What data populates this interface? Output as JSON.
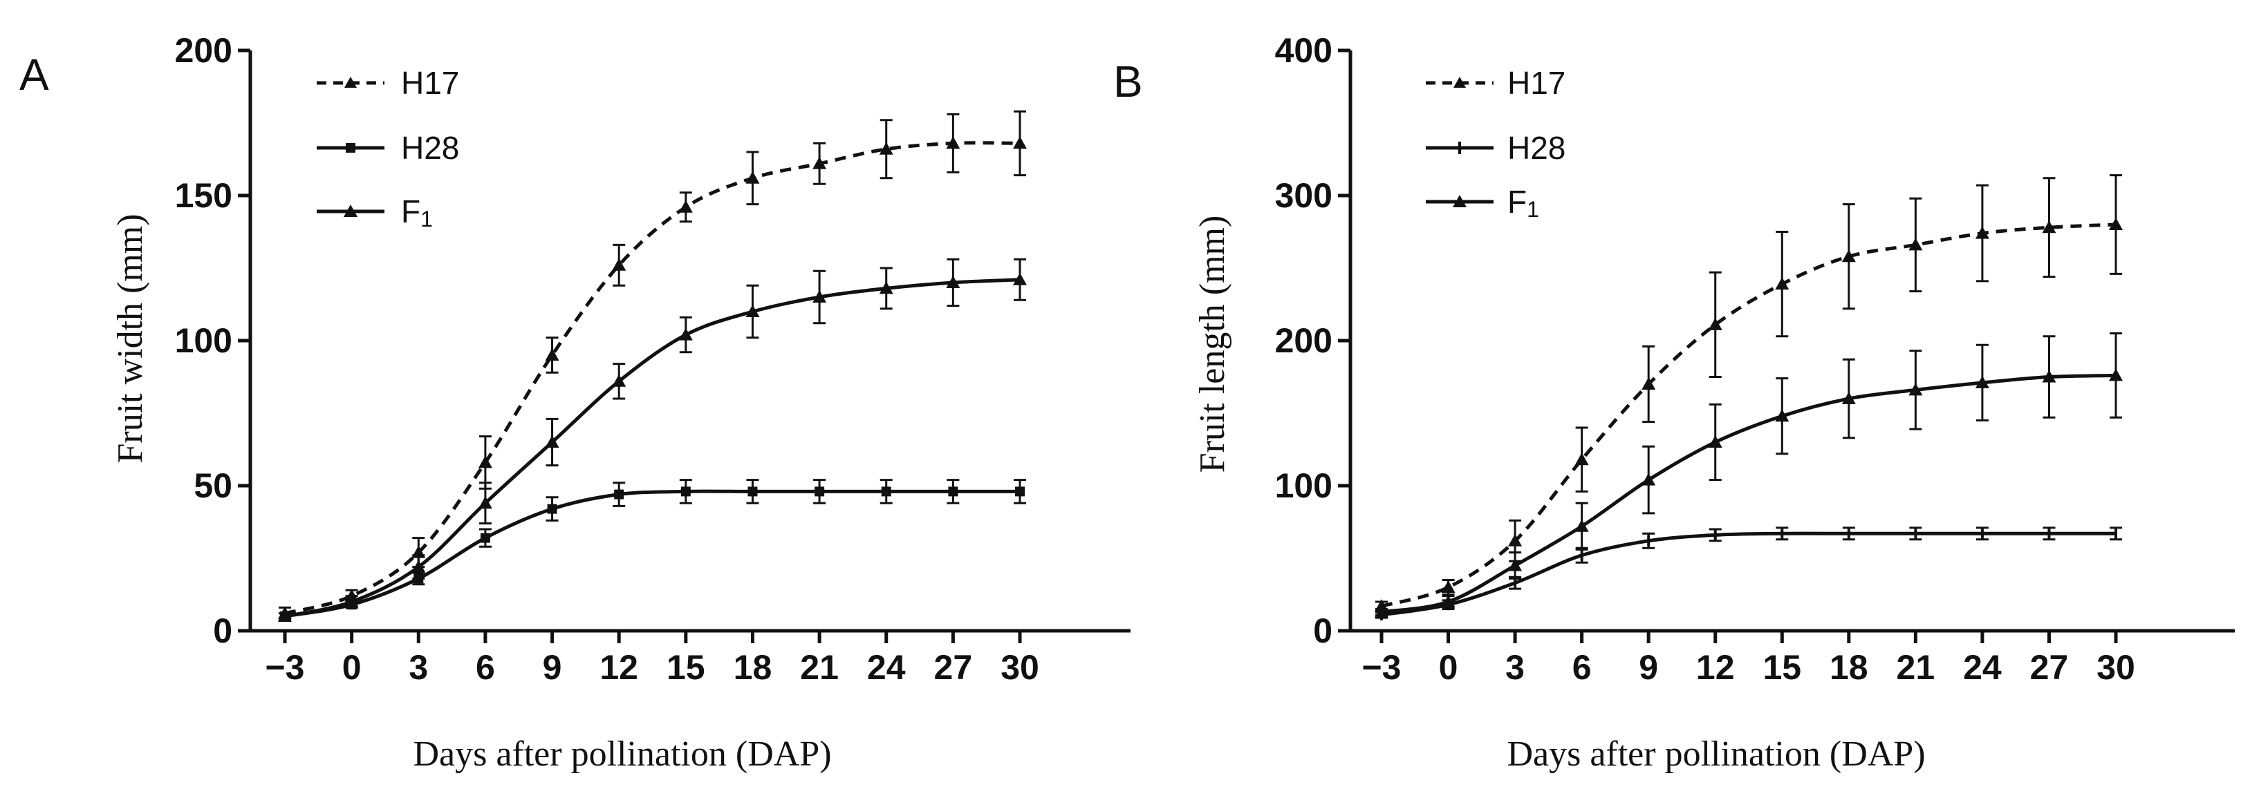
{
  "chart_data": [
    {
      "panel": "A",
      "type": "line",
      "xlabel": "Days after pollination (DAP)",
      "ylabel": "Fruit width (mm)",
      "ylim": [
        0,
        200
      ],
      "yticks": [
        0,
        50,
        100,
        150,
        200
      ],
      "xticks": [
        -3,
        0,
        3,
        6,
        9,
        12,
        15,
        18,
        21,
        24,
        27,
        30
      ],
      "xtick_labels": [
        "−3",
        "0",
        "3",
        "6",
        "9",
        "12",
        "15",
        "18",
        "21",
        "24",
        "27",
        "30"
      ],
      "legend_placement": "top-left",
      "x": [
        -3,
        0,
        3,
        6,
        9,
        12,
        15,
        18,
        21,
        24,
        27,
        30
      ],
      "series": [
        {
          "name": "H17",
          "style": "dashed",
          "marker": "triangle",
          "values": [
            6,
            12,
            27,
            58,
            95,
            126,
            146,
            156,
            161,
            166,
            168,
            168
          ],
          "errors": [
            2,
            2,
            5,
            9,
            6,
            7,
            5,
            9,
            7,
            10,
            10,
            11
          ]
        },
        {
          "name": "H28",
          "style": "solid",
          "marker": "square",
          "values": [
            5,
            9,
            18,
            32,
            42,
            47,
            48,
            48,
            48,
            48,
            48,
            48
          ],
          "errors": [
            1,
            1,
            2,
            3,
            4,
            4,
            4,
            4,
            4,
            4,
            4,
            4
          ]
        },
        {
          "name": "F1",
          "style": "solid",
          "marker": "triangle",
          "values": [
            5,
            10,
            22,
            44,
            65,
            86,
            102,
            110,
            115,
            118,
            120,
            121
          ],
          "errors": [
            1,
            2,
            4,
            7,
            8,
            6,
            6,
            9,
            9,
            7,
            8,
            7
          ]
        }
      ]
    },
    {
      "panel": "B",
      "type": "line",
      "xlabel": "Days after pollination (DAP)",
      "ylabel": "Fruit length (mm)",
      "ylim": [
        0,
        400
      ],
      "yticks": [
        0,
        100,
        200,
        300,
        400
      ],
      "xticks": [
        -3,
        0,
        3,
        6,
        9,
        12,
        15,
        18,
        21,
        24,
        27,
        30
      ],
      "xtick_labels": [
        "−3",
        "0",
        "3",
        "6",
        "9",
        "12",
        "15",
        "18",
        "21",
        "24",
        "27",
        "30"
      ],
      "legend_placement": "top-left",
      "x": [
        -3,
        0,
        3,
        6,
        9,
        12,
        15,
        18,
        21,
        24,
        27,
        30
      ],
      "series": [
        {
          "name": "H17",
          "style": "dashed",
          "marker": "triangle",
          "values": [
            17,
            30,
            62,
            118,
            170,
            211,
            239,
            258,
            266,
            274,
            278,
            280
          ],
          "errors": [
            3,
            5,
            14,
            22,
            26,
            36,
            36,
            36,
            32,
            33,
            34,
            34
          ]
        },
        {
          "name": "H28",
          "style": "solid",
          "marker": "plus",
          "values": [
            11,
            18,
            33,
            52,
            62,
            66,
            67,
            67,
            67,
            67,
            67,
            67
          ],
          "errors": [
            2,
            3,
            4,
            5,
            5,
            4,
            4,
            4,
            4,
            4,
            4,
            4
          ]
        },
        {
          "name": "F1",
          "style": "solid",
          "marker": "triangle",
          "values": [
            13,
            20,
            45,
            72,
            104,
            130,
            148,
            160,
            166,
            171,
            175,
            176
          ],
          "errors": [
            2,
            4,
            9,
            16,
            23,
            26,
            26,
            27,
            27,
            26,
            28,
            29
          ]
        }
      ]
    }
  ],
  "panels": [
    {
      "letter": "A"
    },
    {
      "letter": "B"
    }
  ],
  "legend_labels": {
    "h17": "H17",
    "h28": "H28",
    "f1_main": "F",
    "f1_sub": "1"
  },
  "colors": {
    "ink": "#111111",
    "background": "#ffffff"
  }
}
